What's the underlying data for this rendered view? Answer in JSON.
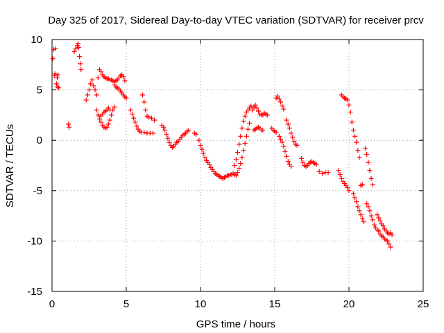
{
  "chart_data": {
    "type": "scatter",
    "title": "Day 325 of 2017, Sidereal Day-to-day VTEC variation (SDTVAR) for receiver prcv",
    "xlabel": "GPS time / hours",
    "ylabel": "SDTVAR / TECUs",
    "xlim": [
      0,
      25
    ],
    "ylim": [
      -15,
      10
    ],
    "xticks": [
      0,
      5,
      10,
      15,
      20,
      25
    ],
    "yticks": [
      -15,
      -10,
      -5,
      0,
      5,
      10
    ],
    "xtick_labels": [
      "0",
      "5",
      "10",
      "15",
      "20",
      "25"
    ],
    "ytick_labels": [
      "-15",
      "-10",
      "-5",
      "0",
      "5",
      "10"
    ],
    "grid": true,
    "marker": "+",
    "color": "#ff0000",
    "series": [
      {
        "name": "SDTVAR",
        "points": [
          [
            0.05,
            8.1
          ],
          [
            0.1,
            9.0
          ],
          [
            0.15,
            6.4
          ],
          [
            0.2,
            6.6
          ],
          [
            0.25,
            9.1
          ],
          [
            0.3,
            5.6
          ],
          [
            0.35,
            5.3
          ],
          [
            0.35,
            6.2
          ],
          [
            0.4,
            6.5
          ],
          [
            0.45,
            5.2
          ],
          [
            1.1,
            1.6
          ],
          [
            1.15,
            1.3
          ],
          [
            1.5,
            8.8
          ],
          [
            1.6,
            9.1
          ],
          [
            1.7,
            9.4
          ],
          [
            1.75,
            9.6
          ],
          [
            1.8,
            9.2
          ],
          [
            1.85,
            8.3
          ],
          [
            1.9,
            7.6
          ],
          [
            1.95,
            7.0
          ],
          [
            2.3,
            4.0
          ],
          [
            2.4,
            4.5
          ],
          [
            2.5,
            5.0
          ],
          [
            2.6,
            5.6
          ],
          [
            2.7,
            6.0
          ],
          [
            2.8,
            5.4
          ],
          [
            2.9,
            5.0
          ],
          [
            3.0,
            4.5
          ],
          [
            3.1,
            6.2
          ],
          [
            3.2,
            7.0
          ],
          [
            3.3,
            6.8
          ],
          [
            3.4,
            6.5
          ],
          [
            3.0,
            3.0
          ],
          [
            3.1,
            2.5
          ],
          [
            3.2,
            2.1
          ],
          [
            3.3,
            1.8
          ],
          [
            3.4,
            1.5
          ],
          [
            3.5,
            1.3
          ],
          [
            3.6,
            1.2
          ],
          [
            3.7,
            1.3
          ],
          [
            3.8,
            1.6
          ],
          [
            3.9,
            2.0
          ],
          [
            4.0,
            2.5
          ],
          [
            4.1,
            3.0
          ],
          [
            4.2,
            3.3
          ],
          [
            3.3,
            2.4
          ],
          [
            3.4,
            2.6
          ],
          [
            3.5,
            2.8
          ],
          [
            3.6,
            2.9
          ],
          [
            3.7,
            3.0
          ],
          [
            3.8,
            3.2
          ],
          [
            3.9,
            3.0
          ],
          [
            3.5,
            6.3
          ],
          [
            3.6,
            6.2
          ],
          [
            3.7,
            6.1
          ],
          [
            3.8,
            6.1
          ],
          [
            3.9,
            6.0
          ],
          [
            4.0,
            6.0
          ],
          [
            4.1,
            5.9
          ],
          [
            4.2,
            5.8
          ],
          [
            4.3,
            5.9
          ],
          [
            4.4,
            6.0
          ],
          [
            4.5,
            6.2
          ],
          [
            4.6,
            6.4
          ],
          [
            4.7,
            6.5
          ],
          [
            4.8,
            6.3
          ],
          [
            4.9,
            5.9
          ],
          [
            4.2,
            5.5
          ],
          [
            4.3,
            5.3
          ],
          [
            4.4,
            5.2
          ],
          [
            4.5,
            5.1
          ],
          [
            4.6,
            4.9
          ],
          [
            4.7,
            4.7
          ],
          [
            4.8,
            4.5
          ],
          [
            4.9,
            4.3
          ],
          [
            5.0,
            4.2
          ],
          [
            5.3,
            3.0
          ],
          [
            5.4,
            2.6
          ],
          [
            5.5,
            2.2
          ],
          [
            5.6,
            1.8
          ],
          [
            5.7,
            1.4
          ],
          [
            5.8,
            1.1
          ],
          [
            5.9,
            0.9
          ],
          [
            6.0,
            0.8
          ],
          [
            6.1,
            4.5
          ],
          [
            6.2,
            3.8
          ],
          [
            6.3,
            3.0
          ],
          [
            6.4,
            2.4
          ],
          [
            6.2,
            0.8
          ],
          [
            6.4,
            0.7
          ],
          [
            6.6,
            0.7
          ],
          [
            6.8,
            0.7
          ],
          [
            6.5,
            2.3
          ],
          [
            6.7,
            2.2
          ],
          [
            6.9,
            2.0
          ],
          [
            7.4,
            1.5
          ],
          [
            7.5,
            1.3
          ],
          [
            7.6,
            1.0
          ],
          [
            7.7,
            0.6
          ],
          [
            7.8,
            0.2
          ],
          [
            7.9,
            -0.2
          ],
          [
            8.0,
            -0.5
          ],
          [
            8.1,
            -0.7
          ],
          [
            8.2,
            -0.6
          ],
          [
            8.3,
            -0.4
          ],
          [
            8.4,
            -0.2
          ],
          [
            8.5,
            -0.1
          ],
          [
            8.6,
            0.1
          ],
          [
            8.7,
            0.3
          ],
          [
            8.8,
            0.5
          ],
          [
            8.9,
            0.6
          ],
          [
            9.0,
            0.7
          ],
          [
            9.1,
            0.9
          ],
          [
            9.2,
            1.0
          ],
          [
            9.6,
            0.7
          ],
          [
            9.7,
            0.6
          ],
          [
            9.9,
            0.0
          ],
          [
            10.0,
            -0.5
          ],
          [
            10.1,
            -0.9
          ],
          [
            10.2,
            -1.3
          ],
          [
            10.3,
            -1.7
          ],
          [
            10.4,
            -2.0
          ],
          [
            10.5,
            -2.2
          ],
          [
            10.6,
            -2.4
          ],
          [
            10.7,
            -2.7
          ],
          [
            10.8,
            -2.9
          ],
          [
            10.9,
            -3.1
          ],
          [
            11.0,
            -3.3
          ],
          [
            11.1,
            -3.4
          ],
          [
            11.2,
            -3.5
          ],
          [
            11.3,
            -3.6
          ],
          [
            11.4,
            -3.7
          ],
          [
            11.5,
            -3.8
          ],
          [
            11.6,
            -3.7
          ],
          [
            11.7,
            -3.6
          ],
          [
            11.8,
            -3.5
          ],
          [
            11.9,
            -3.5
          ],
          [
            12.0,
            -3.4
          ],
          [
            12.1,
            -3.4
          ],
          [
            12.2,
            -3.3
          ],
          [
            12.3,
            -3.4
          ],
          [
            12.4,
            -3.5
          ],
          [
            12.5,
            -3.2
          ],
          [
            12.6,
            -2.8
          ],
          [
            12.7,
            -2.3
          ],
          [
            12.8,
            -1.7
          ],
          [
            12.9,
            -1.0
          ],
          [
            13.0,
            -0.3
          ],
          [
            13.1,
            0.4
          ],
          [
            13.2,
            1.1
          ],
          [
            13.3,
            1.7
          ],
          [
            12.3,
            -2.5
          ],
          [
            12.4,
            -1.9
          ],
          [
            12.5,
            -1.2
          ],
          [
            12.6,
            -0.4
          ],
          [
            12.7,
            0.4
          ],
          [
            12.8,
            1.2
          ],
          [
            12.9,
            1.9
          ],
          [
            13.0,
            2.4
          ],
          [
            13.1,
            2.8
          ],
          [
            13.2,
            3.0
          ],
          [
            13.3,
            3.2
          ],
          [
            13.4,
            3.4
          ],
          [
            13.5,
            3.0
          ],
          [
            13.6,
            3.3
          ],
          [
            13.7,
            3.5
          ],
          [
            13.8,
            3.2
          ],
          [
            13.9,
            2.9
          ],
          [
            14.0,
            2.6
          ],
          [
            14.1,
            2.5
          ],
          [
            14.2,
            2.5
          ],
          [
            14.3,
            2.7
          ],
          [
            14.4,
            2.6
          ],
          [
            14.5,
            2.5
          ],
          [
            13.6,
            1.0
          ],
          [
            13.7,
            1.1
          ],
          [
            13.8,
            1.2
          ],
          [
            13.9,
            1.3
          ],
          [
            14.0,
            1.2
          ],
          [
            14.1,
            1.0
          ],
          [
            14.2,
            1.0
          ],
          [
            14.8,
            1.2
          ],
          [
            14.9,
            1.0
          ],
          [
            15.0,
            0.9
          ],
          [
            15.1,
            0.8
          ],
          [
            15.1,
            4.2
          ],
          [
            15.2,
            4.4
          ],
          [
            15.3,
            4.1
          ],
          [
            15.4,
            3.8
          ],
          [
            15.5,
            3.4
          ],
          [
            15.6,
            3.1
          ],
          [
            15.3,
            0.4
          ],
          [
            15.4,
            0.1
          ],
          [
            15.5,
            -0.2
          ],
          [
            15.6,
            -0.6
          ],
          [
            15.7,
            -1.1
          ],
          [
            15.8,
            -1.6
          ],
          [
            15.9,
            -2.1
          ],
          [
            16.0,
            -2.4
          ],
          [
            16.1,
            -2.6
          ],
          [
            15.8,
            2.0
          ],
          [
            15.9,
            1.6
          ],
          [
            16.0,
            1.2
          ],
          [
            16.1,
            0.7
          ],
          [
            16.2,
            0.3
          ],
          [
            16.3,
            -0.1
          ],
          [
            16.4,
            -0.4
          ],
          [
            16.5,
            -0.5
          ],
          [
            16.8,
            -1.8
          ],
          [
            16.9,
            -2.2
          ],
          [
            17.0,
            -2.5
          ],
          [
            17.1,
            -2.6
          ],
          [
            17.2,
            -2.5
          ],
          [
            17.3,
            -2.3
          ],
          [
            17.4,
            -2.2
          ],
          [
            17.5,
            -2.1
          ],
          [
            17.6,
            -2.2
          ],
          [
            17.7,
            -2.3
          ],
          [
            17.8,
            -2.4
          ],
          [
            18.0,
            -3.1
          ],
          [
            18.2,
            -3.3
          ],
          [
            18.4,
            -3.2
          ],
          [
            18.6,
            -3.2
          ],
          [
            19.3,
            -3.0
          ],
          [
            19.4,
            -3.4
          ],
          [
            19.5,
            -3.8
          ],
          [
            19.6,
            -4.1
          ],
          [
            19.7,
            -4.3
          ],
          [
            19.8,
            -4.5
          ],
          [
            19.9,
            -4.7
          ],
          [
            20.0,
            -5.0
          ],
          [
            19.5,
            4.5
          ],
          [
            19.6,
            4.3
          ],
          [
            19.7,
            4.2
          ],
          [
            19.8,
            4.1
          ],
          [
            19.9,
            4.0
          ],
          [
            20.0,
            3.5
          ],
          [
            20.1,
            2.8
          ],
          [
            20.2,
            1.8
          ],
          [
            20.3,
            1.0
          ],
          [
            20.4,
            0.4
          ],
          [
            20.5,
            -0.2
          ],
          [
            20.3,
            -5.3
          ],
          [
            20.4,
            -5.7
          ],
          [
            20.5,
            -6.1
          ],
          [
            20.6,
            -6.6
          ],
          [
            20.7,
            -7.0
          ],
          [
            20.8,
            -7.4
          ],
          [
            20.9,
            -7.8
          ],
          [
            21.0,
            -8.1
          ],
          [
            20.6,
            -1.0
          ],
          [
            20.7,
            -1.7
          ],
          [
            20.8,
            -4.5
          ],
          [
            20.9,
            -4.4
          ],
          [
            21.1,
            -0.8
          ],
          [
            21.2,
            -1.4
          ],
          [
            21.3,
            -2.2
          ],
          [
            21.4,
            -3.0
          ],
          [
            21.5,
            -3.8
          ],
          [
            21.6,
            -4.4
          ],
          [
            21.2,
            -6.3
          ],
          [
            21.3,
            -6.6
          ],
          [
            21.4,
            -7.0
          ],
          [
            21.5,
            -7.5
          ],
          [
            21.6,
            -7.9
          ],
          [
            21.7,
            -8.4
          ],
          [
            21.8,
            -8.7
          ],
          [
            21.9,
            -8.9
          ],
          [
            22.0,
            -9.0
          ],
          [
            22.1,
            -9.3
          ],
          [
            22.2,
            -9.5
          ],
          [
            22.3,
            -9.6
          ],
          [
            22.4,
            -9.8
          ],
          [
            22.5,
            -9.9
          ],
          [
            22.6,
            -10.0
          ],
          [
            22.7,
            -10.3
          ],
          [
            22.8,
            -10.6
          ],
          [
            22.9,
            -9.4
          ],
          [
            21.9,
            -7.4
          ],
          [
            22.0,
            -7.7
          ],
          [
            22.1,
            -8.0
          ],
          [
            22.2,
            -8.3
          ],
          [
            22.3,
            -8.5
          ],
          [
            22.4,
            -8.8
          ],
          [
            22.5,
            -9.0
          ],
          [
            22.6,
            -9.2
          ],
          [
            22.7,
            -9.3
          ],
          [
            22.8,
            -9.2
          ]
        ]
      }
    ]
  }
}
